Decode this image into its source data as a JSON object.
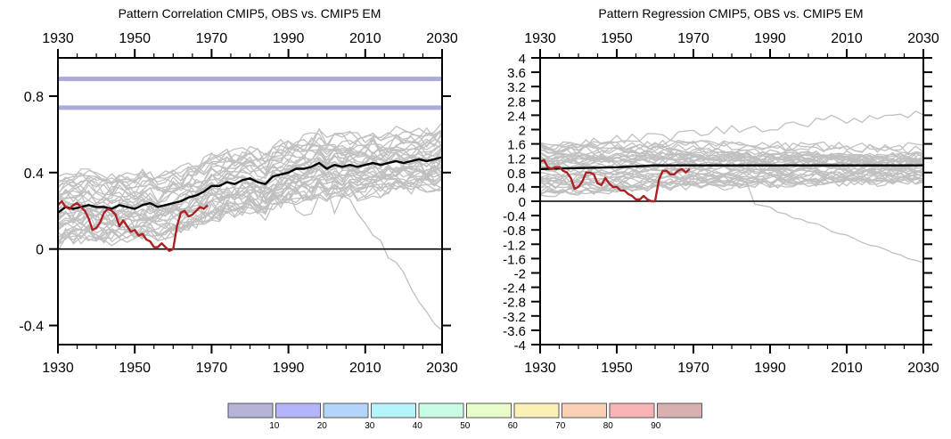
{
  "chart_data": [
    {
      "type": "line",
      "title": "Pattern Correlation CMIP5, OBS vs. CMIP5 EM",
      "xlabel": "",
      "ylabel": "",
      "xlim": [
        1930,
        2030
      ],
      "ylim": [
        -0.5,
        1.0
      ],
      "x_ticks": [
        1930,
        1950,
        1970,
        1990,
        2010,
        2030
      ],
      "x_tick_labels": [
        "1930",
        "1950",
        "1970",
        "1990",
        "2010",
        "2030"
      ],
      "y_ticks": [
        -0.4,
        0,
        0.4,
        0.8
      ],
      "y_tick_labels": [
        "-0.4",
        "0",
        "0.4",
        "0.8"
      ],
      "grid": false,
      "reference_lines": [
        {
          "name": "zero-line",
          "y": 0,
          "color": "#000000"
        },
        {
          "name": "band-upper",
          "y": 0.89,
          "color": "#aaaadd"
        },
        {
          "name": "band-lower",
          "y": 0.74,
          "color": "#aaaadd"
        }
      ],
      "series": [
        {
          "name": "CMIP5 ensemble mean",
          "color": "#000000",
          "x": [
            1930,
            1932,
            1934,
            1936,
            1938,
            1940,
            1942,
            1944,
            1946,
            1948,
            1950,
            1952,
            1954,
            1956,
            1958,
            1960,
            1962,
            1964,
            1966,
            1968,
            1970,
            1972,
            1974,
            1976,
            1978,
            1980,
            1982,
            1984,
            1986,
            1988,
            1990,
            1992,
            1994,
            1996,
            1998,
            2000,
            2002,
            2004,
            2006,
            2008,
            2010,
            2012,
            2014,
            2016,
            2018,
            2020,
            2022,
            2024,
            2026,
            2028,
            2030
          ],
          "values": [
            0.19,
            0.22,
            0.21,
            0.22,
            0.23,
            0.22,
            0.22,
            0.21,
            0.23,
            0.22,
            0.21,
            0.23,
            0.24,
            0.22,
            0.23,
            0.24,
            0.25,
            0.27,
            0.28,
            0.3,
            0.33,
            0.33,
            0.35,
            0.34,
            0.36,
            0.37,
            0.35,
            0.34,
            0.38,
            0.39,
            0.4,
            0.42,
            0.42,
            0.43,
            0.45,
            0.42,
            0.44,
            0.43,
            0.44,
            0.43,
            0.44,
            0.45,
            0.44,
            0.45,
            0.46,
            0.45,
            0.46,
            0.47,
            0.46,
            0.47,
            0.48
          ]
        },
        {
          "name": "OBS",
          "color": "#aa2222",
          "x": [
            1930,
            1931,
            1932,
            1933,
            1934,
            1935,
            1936,
            1937,
            1938,
            1939,
            1940,
            1941,
            1942,
            1943,
            1944,
            1945,
            1946,
            1947,
            1948,
            1949,
            1950,
            1951,
            1952,
            1953,
            1954,
            1955,
            1956,
            1957,
            1958,
            1959,
            1960,
            1961,
            1962,
            1963,
            1964,
            1965,
            1966,
            1967,
            1968,
            1969
          ],
          "values": [
            0.23,
            0.25,
            0.22,
            0.21,
            0.23,
            0.24,
            0.22,
            0.2,
            0.16,
            0.1,
            0.11,
            0.14,
            0.19,
            0.21,
            0.2,
            0.18,
            0.12,
            0.15,
            0.12,
            0.09,
            0.1,
            0.07,
            0.08,
            0.05,
            0.04,
            0.01,
            0.01,
            0.03,
            0.01,
            -0.01,
            0.0,
            0.12,
            0.19,
            0.2,
            0.17,
            0.18,
            0.2,
            0.22,
            0.21,
            0.23
          ]
        }
      ],
      "ensemble_members": {
        "color": "#c0c0c0",
        "count": 40,
        "description": "CMIP5 individual model pattern correlations (grey)"
      }
    },
    {
      "type": "line",
      "title": "Pattern Regression CMIP5, OBS vs. CMIP5 EM",
      "xlabel": "",
      "ylabel": "",
      "xlim": [
        1930,
        2030
      ],
      "ylim": [
        -4,
        4
      ],
      "x_ticks": [
        1930,
        1950,
        1970,
        1990,
        2010,
        2030
      ],
      "x_tick_labels": [
        "1930",
        "1950",
        "1970",
        "1990",
        "2010",
        "2030"
      ],
      "y_ticks": [
        -4,
        -3.6,
        -3.2,
        -2.8,
        -2.4,
        -2,
        -1.6,
        -1.2,
        -0.8,
        -0.4,
        0,
        0.4,
        0.8,
        1.2,
        1.6,
        2,
        2.4,
        2.8,
        3.2,
        3.6,
        4
      ],
      "y_tick_labels": [
        "-4",
        "-3.6",
        "-3.2",
        "-2.8",
        "-2.4",
        "-2",
        "-1.6",
        "-1.2",
        "-0.8",
        "-0.4",
        "0",
        "0.4",
        "0.8",
        "1.2",
        "1.6",
        "2",
        "2.4",
        "2.8",
        "3.2",
        "3.6",
        "4"
      ],
      "grid": false,
      "reference_lines": [
        {
          "name": "zero-line",
          "y": 0,
          "color": "#000000"
        }
      ],
      "series": [
        {
          "name": "CMIP5 ensemble mean",
          "color": "#000000",
          "x": [
            1930,
            1950,
            1960,
            1980,
            2000,
            2030
          ],
          "values": [
            0.9,
            0.95,
            1.0,
            1.0,
            1.0,
            1.0
          ]
        },
        {
          "name": "OBS",
          "color": "#aa2222",
          "x": [
            1930,
            1931,
            1932,
            1933,
            1934,
            1935,
            1936,
            1937,
            1938,
            1939,
            1940,
            1941,
            1942,
            1943,
            1944,
            1945,
            1946,
            1947,
            1948,
            1949,
            1950,
            1951,
            1952,
            1953,
            1954,
            1955,
            1956,
            1957,
            1958,
            1959,
            1960,
            1961,
            1962,
            1963,
            1964,
            1965,
            1966,
            1967,
            1968,
            1969
          ],
          "values": [
            1.1,
            1.15,
            0.95,
            0.9,
            0.95,
            0.95,
            0.85,
            0.8,
            0.65,
            0.35,
            0.4,
            0.55,
            0.8,
            0.8,
            0.75,
            0.5,
            0.45,
            0.65,
            0.5,
            0.4,
            0.4,
            0.3,
            0.3,
            0.2,
            0.15,
            0.05,
            0.05,
            0.15,
            0.05,
            0.0,
            0.0,
            0.6,
            0.85,
            0.85,
            0.75,
            0.75,
            0.85,
            0.9,
            0.8,
            0.9
          ]
        }
      ],
      "ensemble_members": {
        "color": "#c0c0c0",
        "count": 40,
        "description": "CMIP5 individual model pattern regressions (grey)"
      }
    }
  ],
  "colorbar": {
    "labels": [
      "10",
      "20",
      "30",
      "40",
      "50",
      "60",
      "70",
      "80",
      "90"
    ],
    "colors": [
      "#b4b4d8",
      "#b4b4fc",
      "#b4d4fc",
      "#b4f4fc",
      "#c8fce4",
      "#e8fcc8",
      "#fcf0b4",
      "#fcd0b4",
      "#f8b4b4",
      "#d8b0b0"
    ]
  }
}
